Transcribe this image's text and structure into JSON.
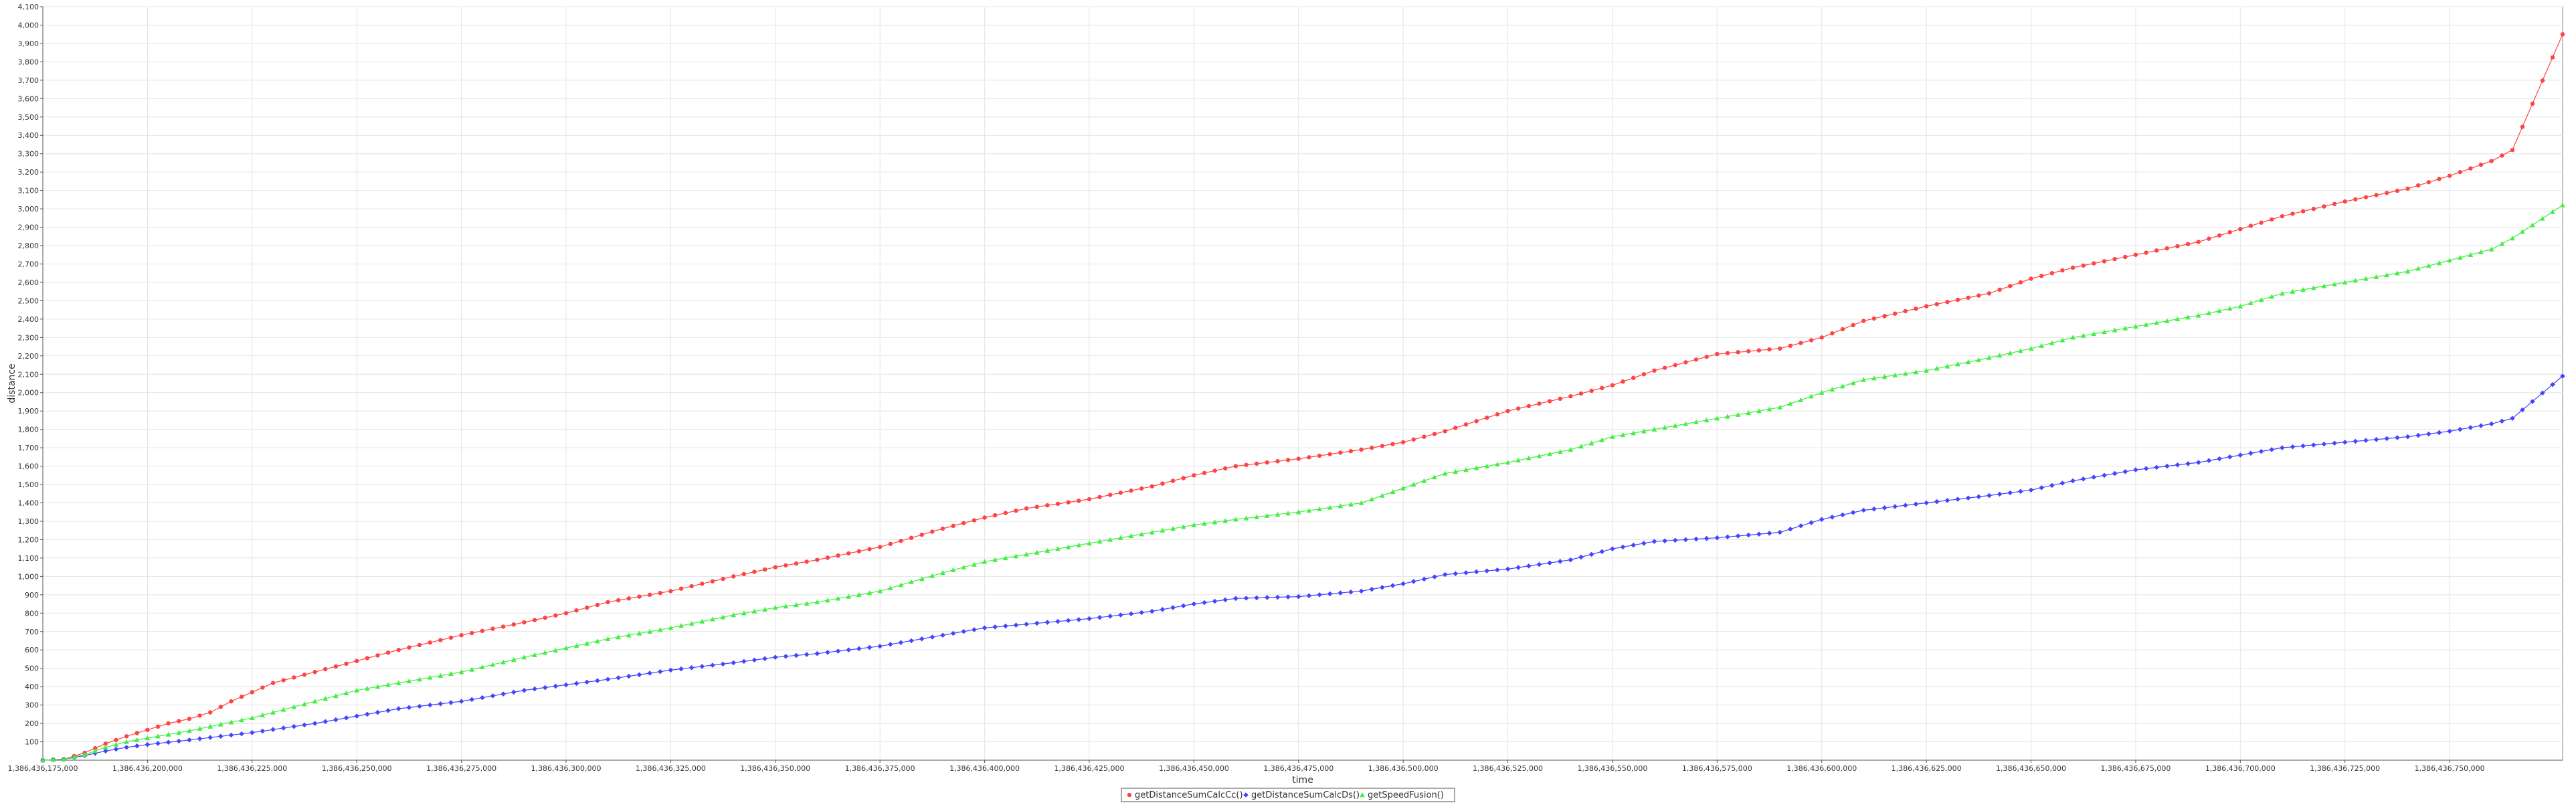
{
  "chart_data": {
    "type": "line",
    "title": "",
    "xlabel": "time",
    "ylabel": "distance",
    "xlim": [
      1386436175000,
      1386436777000
    ],
    "ylim": [
      0,
      4100
    ],
    "grid": true,
    "legend_position": "bottom",
    "x_ticks": [
      1386436175000,
      1386436200000,
      1386436225000,
      1386436250000,
      1386436275000,
      1386436300000,
      1386436325000,
      1386436350000,
      1386436375000,
      1386436400000,
      1386436425000,
      1386436450000,
      1386436475000,
      1386436500000,
      1386436525000,
      1386436550000,
      1386436575000,
      1386436600000,
      1386436625000,
      1386436650000,
      1386436675000,
      1386436700000,
      1386436725000,
      1386436750000
    ],
    "x_tick_labels": [
      "1,386,436,175,000",
      "1,386,436,200,000",
      "1,386,436,225,000",
      "1,386,436,250,000",
      "1,386,436,275,000",
      "1,386,436,300,000",
      "1,386,436,325,000",
      "1,386,436,350,000",
      "1,386,436,375,000",
      "1,386,436,400,000",
      "1,386,436,425,000",
      "1,386,436,450,000",
      "1,386,436,475,000",
      "1,386,436,500,000",
      "1,386,436,525,000",
      "1,386,436,550,000",
      "1,386,436,575,000",
      "1,386,436,600,000",
      "1,386,436,625,000",
      "1,386,436,650,000",
      "1,386,436,675,000",
      "1,386,436,700,000",
      "1,386,436,725,000",
      "1,386,436,750,000"
    ],
    "y_ticks": [
      100,
      200,
      300,
      400,
      500,
      600,
      700,
      800,
      900,
      1000,
      1100,
      1200,
      1300,
      1400,
      1500,
      1600,
      1700,
      1800,
      1900,
      2000,
      2100,
      2200,
      2300,
      2400,
      2500,
      2600,
      2700,
      2800,
      2900,
      3000,
      3100,
      3200,
      3300,
      3400,
      3500,
      3600,
      3700,
      3800,
      3900,
      4000,
      4100
    ],
    "y_tick_labels": [
      "100",
      "200",
      "300",
      "400",
      "500",
      "600",
      "700",
      "800",
      "900",
      "1,000",
      "1,100",
      "1,200",
      "1,300",
      "1,400",
      "1,500",
      "1,600",
      "1,700",
      "1,800",
      "1,900",
      "2,000",
      "2,100",
      "2,200",
      "2,300",
      "2,400",
      "2,500",
      "2,600",
      "2,700",
      "2,800",
      "2,900",
      "3,000",
      "3,100",
      "3,200",
      "3,300",
      "3,400",
      "3,500",
      "3,600",
      "3,700",
      "3,800",
      "3,900",
      "4,000",
      "4,100"
    ],
    "series": [
      {
        "name": "getDistanceSumCalcCc()",
        "color": "#ff4444",
        "marker": "circle",
        "x": [
          1386436175000,
          1386436180000,
          1386436185000,
          1386436190000,
          1386436195000,
          1386436200000,
          1386436205000,
          1386436210000,
          1386436215000,
          1386436220000,
          1386436225000,
          1386436230000,
          1386436240000,
          1386436250000,
          1386436260000,
          1386436275000,
          1386436290000,
          1386436300000,
          1386436310000,
          1386436325000,
          1386436340000,
          1386436350000,
          1386436360000,
          1386436375000,
          1386436390000,
          1386436400000,
          1386436410000,
          1386436425000,
          1386436440000,
          1386436450000,
          1386436460000,
          1386436475000,
          1386436490000,
          1386436500000,
          1386436510000,
          1386436525000,
          1386436540000,
          1386436550000,
          1386436560000,
          1386436575000,
          1386436590000,
          1386436600000,
          1386436610000,
          1386436625000,
          1386436640000,
          1386436650000,
          1386436660000,
          1386436675000,
          1386436690000,
          1386436700000,
          1386436710000,
          1386436725000,
          1386436740000,
          1386436750000,
          1386436760000,
          1386436765000,
          1386436777000
        ],
        "y": [
          0,
          5,
          40,
          90,
          130,
          165,
          200,
          225,
          260,
          320,
          370,
          420,
          480,
          540,
          600,
          680,
          750,
          800,
          860,
          920,
          1000,
          1050,
          1090,
          1160,
          1260,
          1320,
          1370,
          1420,
          1490,
          1550,
          1600,
          1640,
          1690,
          1730,
          1790,
          1900,
          1980,
          2040,
          2120,
          2210,
          2240,
          2300,
          2390,
          2470,
          2540,
          2620,
          2680,
          2750,
          2820,
          2890,
          2960,
          3040,
          3110,
          3180,
          3260,
          3320,
          3950
        ]
      },
      {
        "name": "getDistanceSumCalcDs()",
        "color": "#4444ff",
        "marker": "diamond",
        "x": [
          1386436175000,
          1386436180000,
          1386436185000,
          1386436190000,
          1386436195000,
          1386436200000,
          1386436210000,
          1386436225000,
          1386436240000,
          1386436250000,
          1386436260000,
          1386436275000,
          1386436290000,
          1386436300000,
          1386436310000,
          1386436325000,
          1386436340000,
          1386436350000,
          1386436360000,
          1386436375000,
          1386436390000,
          1386436400000,
          1386436410000,
          1386436425000,
          1386436440000,
          1386436450000,
          1386436460000,
          1386436475000,
          1386436490000,
          1386436500000,
          1386436510000,
          1386436525000,
          1386436540000,
          1386436550000,
          1386436560000,
          1386436575000,
          1386436590000,
          1386436600000,
          1386436610000,
          1386436625000,
          1386436640000,
          1386436650000,
          1386436660000,
          1386436675000,
          1386436690000,
          1386436700000,
          1386436710000,
          1386436725000,
          1386436740000,
          1386436750000,
          1386436760000,
          1386436765000,
          1386436777000
        ],
        "y": [
          0,
          5,
          25,
          50,
          70,
          85,
          110,
          150,
          200,
          240,
          280,
          320,
          380,
          410,
          440,
          490,
          530,
          560,
          580,
          620,
          680,
          720,
          740,
          770,
          810,
          850,
          880,
          890,
          920,
          960,
          1010,
          1040,
          1090,
          1150,
          1190,
          1210,
          1240,
          1310,
          1360,
          1400,
          1440,
          1470,
          1520,
          1580,
          1620,
          1660,
          1700,
          1730,
          1760,
          1790,
          1830,
          1860,
          2090
        ]
      },
      {
        "name": "getSpeedFusion()",
        "color": "#44ee44",
        "marker": "triangle",
        "x": [
          1386436175000,
          1386436180000,
          1386436185000,
          1386436190000,
          1386436195000,
          1386436200000,
          1386436210000,
          1386436225000,
          1386436240000,
          1386436250000,
          1386436260000,
          1386436275000,
          1386436290000,
          1386436300000,
          1386436310000,
          1386436325000,
          1386436340000,
          1386436350000,
          1386436360000,
          1386436375000,
          1386436390000,
          1386436400000,
          1386436410000,
          1386436425000,
          1386436440000,
          1386436450000,
          1386436460000,
          1386436475000,
          1386436490000,
          1386436500000,
          1386436510000,
          1386436525000,
          1386436540000,
          1386436550000,
          1386436560000,
          1386436575000,
          1386436590000,
          1386436600000,
          1386436610000,
          1386436625000,
          1386436640000,
          1386436650000,
          1386436660000,
          1386436675000,
          1386436690000,
          1386436700000,
          1386436710000,
          1386436725000,
          1386436740000,
          1386436750000,
          1386436760000,
          1386436765000,
          1386436777000
        ],
        "y": [
          0,
          5,
          30,
          70,
          100,
          120,
          160,
          230,
          320,
          380,
          420,
          480,
          560,
          610,
          660,
          720,
          790,
          830,
          860,
          920,
          1020,
          1080,
          1120,
          1180,
          1240,
          1280,
          1310,
          1350,
          1400,
          1480,
          1560,
          1620,
          1690,
          1760,
          1800,
          1860,
          1920,
          2000,
          2070,
          2120,
          2190,
          2240,
          2300,
          2360,
          2420,
          2470,
          2540,
          2600,
          2660,
          2720,
          2780,
          2840,
          3020
        ]
      }
    ]
  }
}
